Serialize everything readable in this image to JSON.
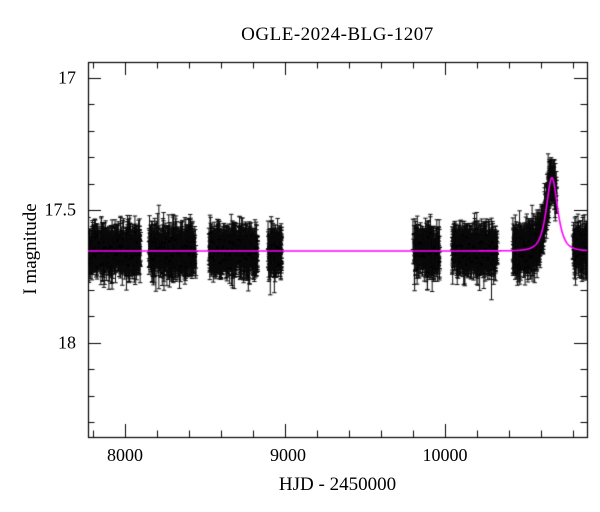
{
  "chart_data": {
    "type": "scatter",
    "title": "OGLE-2024-BLG-1207",
    "xlabel": "HJD - 2450000",
    "ylabel": "I magnitude",
    "x_range": [
      7769,
      10888
    ],
    "y_range": [
      16.94,
      18.355
    ],
    "y_axis_inverted": true,
    "grid": false,
    "legend": "none",
    "x_ticks": {
      "major": [
        {
          "value": 8000,
          "label": "8000"
        },
        {
          "value": 9000,
          "label": "9000"
        },
        {
          "value": 10000,
          "label": "10000"
        }
      ],
      "minor_start": 7800,
      "minor_end": 10800,
      "minor_step": 200
    },
    "y_ticks": {
      "major": [
        {
          "value": 17,
          "label": "17"
        },
        {
          "value": 17.5,
          "label": "17.5"
        },
        {
          "value": 18,
          "label": "18"
        }
      ],
      "minor_start": 17.0,
      "minor_end": 18.3,
      "minor_step": 0.1
    },
    "photometry": {
      "marker": "point-with-errorbar",
      "color": "#000000",
      "baseline_mag": 17.653,
      "scatter_sigma_mag": 0.033,
      "errorbar_mag_min": 0.028,
      "errorbar_mag_max": 0.095,
      "brightest_point_mag": 17.33,
      "seasons": [
        {
          "t_start": 7769,
          "t_end": 8100,
          "n": 520
        },
        {
          "t_start": 8150,
          "t_end": 8444,
          "n": 450
        },
        {
          "t_start": 8525,
          "t_end": 8831,
          "n": 470
        },
        {
          "t_start": 8894,
          "t_end": 8981,
          "n": 150
        },
        {
          "t_start": 9800,
          "t_end": 9969,
          "n": 230
        },
        {
          "t_start": 10044,
          "t_end": 10331,
          "n": 430
        },
        {
          "t_start": 10425,
          "t_end": 10700,
          "n": 470
        },
        {
          "t_start": 10800,
          "t_end": 10888,
          "n": 150
        }
      ]
    },
    "model": {
      "type": "line",
      "shape": "paczynski-microlensing",
      "color": "#ff00ff",
      "baseline_mag": 17.653,
      "t0": 10669,
      "tE": 40,
      "u0": 1.08,
      "peak_mag": 17.38
    }
  }
}
